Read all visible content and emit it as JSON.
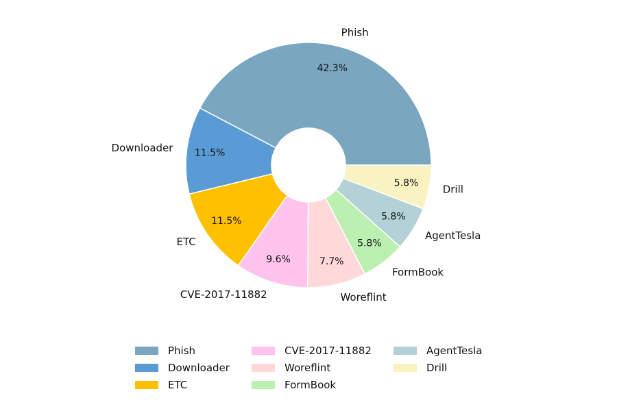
{
  "chart_data": {
    "type": "pie",
    "donut": true,
    "legend_position": "bottom",
    "slices": [
      {
        "label": "Phish",
        "percent": 42.3,
        "percent_label": "42.3%",
        "color": "#7aa6c0"
      },
      {
        "label": "Downloader",
        "percent": 11.5,
        "percent_label": "11.5%",
        "color": "#5b9bd5"
      },
      {
        "label": "ETC",
        "percent": 11.5,
        "percent_label": "11.5%",
        "color": "#ffc000"
      },
      {
        "label": "CVE-2017-11882",
        "percent": 9.6,
        "percent_label": "9.6%",
        "color": "#ffc3ed"
      },
      {
        "label": "Woreflint",
        "percent": 7.7,
        "percent_label": "7.7%",
        "color": "#ffd9d9"
      },
      {
        "label": "FormBook",
        "percent": 5.8,
        "percent_label": "5.8%",
        "color": "#bbf0b0"
      },
      {
        "label": "AgentTesla",
        "percent": 5.8,
        "percent_label": "5.8%",
        "color": "#b3d1d6"
      },
      {
        "label": "Drill",
        "percent": 5.8,
        "percent_label": "5.8%",
        "color": "#f9f3c2"
      }
    ]
  }
}
